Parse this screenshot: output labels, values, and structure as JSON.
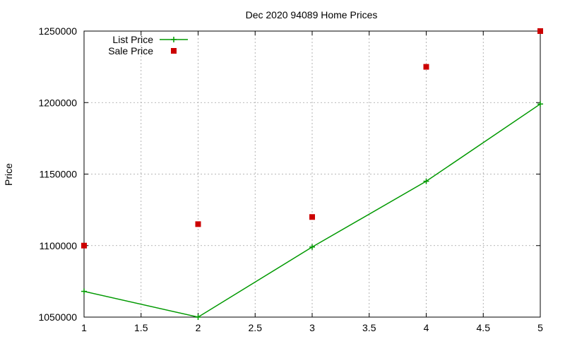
{
  "chart_data": {
    "type": "line",
    "title": "Dec 2020 94089 Home Prices",
    "xlabel": "",
    "ylabel": "Price",
    "xlim": [
      1,
      5
    ],
    "ylim": [
      1050000,
      1250000
    ],
    "x_ticks": [
      "1",
      "1.5",
      "2",
      "2.5",
      "3",
      "3.5",
      "4",
      "4.5",
      "5"
    ],
    "y_ticks": [
      "1050000",
      "1100000",
      "1150000",
      "1200000",
      "1250000"
    ],
    "grid": true,
    "legend_position": "top-left",
    "series": [
      {
        "name": "List Price",
        "style": "linespoints",
        "color": "#009900",
        "x": [
          1,
          2,
          3,
          4,
          5
        ],
        "values": [
          1068000,
          1050000,
          1099000,
          1145000,
          1199000
        ]
      },
      {
        "name": "Sale Price",
        "style": "points",
        "color": "#cc0000",
        "x": [
          1,
          2,
          3,
          4,
          5
        ],
        "values": [
          1100000,
          1115000,
          1120000,
          1225000,
          1250000
        ]
      }
    ]
  }
}
